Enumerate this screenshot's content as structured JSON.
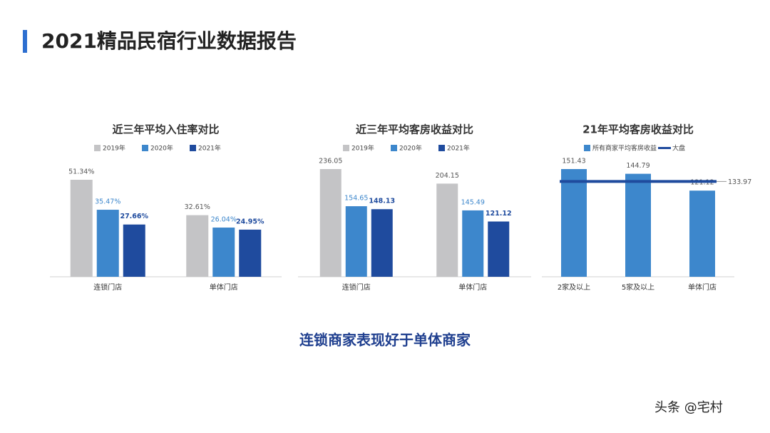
{
  "title": "2021精品民宿行业数据报告",
  "conclusion": "连锁商家表现好于单体商家",
  "footer": "头条 @宅村",
  "chart_data": [
    {
      "type": "bar",
      "title": "近三年平均入住率对比",
      "categories": [
        "连锁门店",
        "单体门店"
      ],
      "series": [
        {
          "name": "2019年",
          "color": "#c4c4c6",
          "values": [
            51.34,
            32.61
          ],
          "value_labels": [
            "51.34%",
            "32.61%"
          ]
        },
        {
          "name": "2020年",
          "color": "#3d87cc",
          "values": [
            35.47,
            26.04
          ],
          "value_labels": [
            "35.47%",
            "26.04%"
          ]
        },
        {
          "name": "2021年",
          "color": "#1f4b9e",
          "values": [
            27.66,
            24.95
          ],
          "value_labels": [
            "27.66%",
            "24.95%"
          ]
        }
      ]
    },
    {
      "type": "bar",
      "title": "近三年平均客房收益对比",
      "categories": [
        "连锁门店",
        "单体门店"
      ],
      "series": [
        {
          "name": "2019年",
          "color": "#c4c4c6",
          "values": [
            236.05,
            204.15
          ]
        },
        {
          "name": "2020年",
          "color": "#3d87cc",
          "values": [
            154.65,
            145.49
          ]
        },
        {
          "name": "2021年",
          "color": "#1f4b9e",
          "values": [
            148.13,
            121.12
          ]
        }
      ]
    },
    {
      "type": "bar",
      "title": "21年平均客房收益对比",
      "categories": [
        "2家及以上",
        "5家及以上",
        "单体门店"
      ],
      "series": [
        {
          "name": "所有商家平均客房收益",
          "color": "#3d87cc",
          "values": [
            151.43,
            144.79,
            121.12
          ]
        }
      ],
      "hline": {
        "name": "大盘",
        "value": 133.97,
        "color": "#1f4b9e"
      }
    }
  ]
}
